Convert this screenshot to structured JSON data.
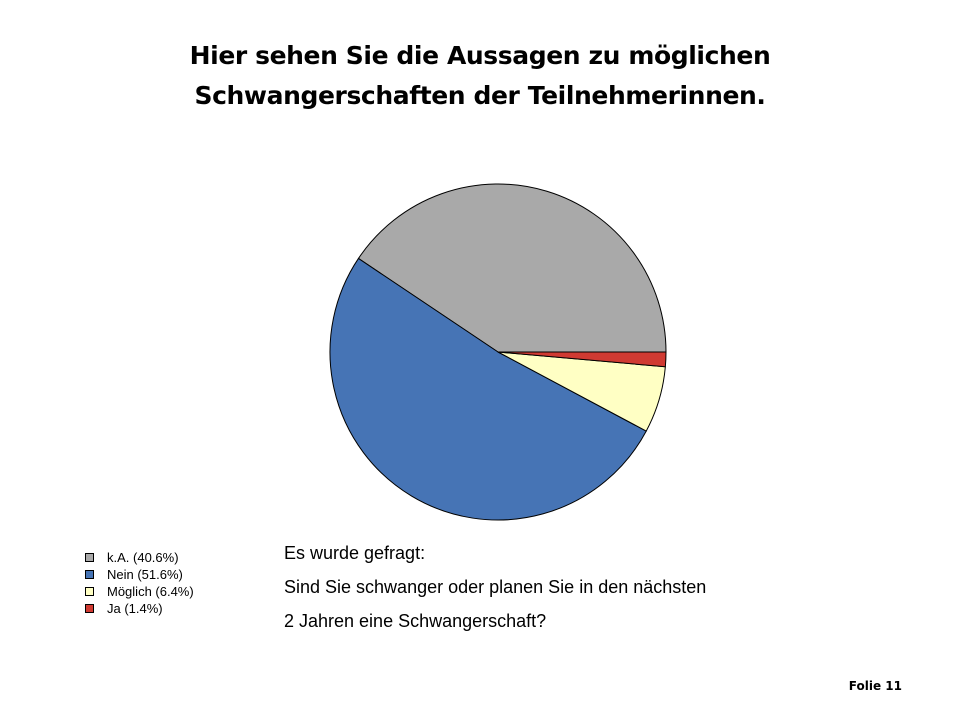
{
  "title": {
    "line1": "Hier sehen Sie die Aussagen zu möglichen",
    "line2": "Schwangerschaften der Teilnehmerinnen."
  },
  "chart_data": {
    "type": "pie",
    "title": "",
    "slices": [
      {
        "label": "k.A. (40.6%)",
        "value": 40.6,
        "color": "#a9a9a9"
      },
      {
        "label": "Nein (51.6%)",
        "value": 51.6,
        "color": "#4674b5"
      },
      {
        "label": "Möglich (6.4%)",
        "value": 6.4,
        "color": "#ffffc4"
      },
      {
        "label": "Ja (1.4%)",
        "value": 1.4,
        "color": "#d03a32"
      }
    ],
    "legend_placement": "bottom-left"
  },
  "question": {
    "line1": "Es wurde gefragt:",
    "line2": "Sind Sie schwanger oder planen Sie in den nächsten",
    "line3": "2 Jahren eine Schwangerschaft?"
  },
  "footer": {
    "slide_label": "Folie 11"
  }
}
